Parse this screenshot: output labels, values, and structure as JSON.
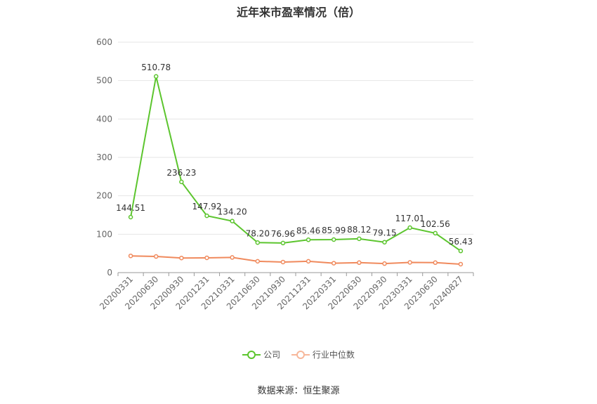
{
  "chart_data": {
    "type": "line",
    "title": "近年来市盈率情况（倍）",
    "categories": [
      "20200331",
      "20200630",
      "20200930",
      "20201231",
      "20210331",
      "20210630",
      "20210930",
      "20211231",
      "20220331",
      "20220630",
      "20220930",
      "20230331",
      "20230630",
      "20240827"
    ],
    "series": [
      {
        "name": "公司",
        "color": "#5cc52e",
        "values": [
          144.51,
          510.78,
          236.23,
          147.92,
          134.2,
          78.2,
          76.96,
          85.46,
          85.99,
          88.12,
          79.15,
          117.01,
          102.56,
          56.43
        ],
        "labels": [
          "144.51",
          "510.78",
          "236.23",
          "147.92",
          "134.20",
          "78.20",
          "76.96",
          "85.46",
          "85.99",
          "88.12",
          "79.15",
          "117.01",
          "102.56",
          "56.43"
        ]
      },
      {
        "name": "行业中位数",
        "color": "#f08a5d",
        "values": [
          43.5,
          42.0,
          38.0,
          38.5,
          39.5,
          29.5,
          27.5,
          29.5,
          24.5,
          26.0,
          23.5,
          26.5,
          26.0,
          22.0
        ]
      }
    ],
    "ylim": [
      0,
      600
    ],
    "yticks": [
      0,
      100,
      200,
      300,
      400,
      500,
      600
    ],
    "grid": true,
    "legend_position": "bottom"
  },
  "footer": {
    "source": "数据来源：恒生聚源"
  }
}
